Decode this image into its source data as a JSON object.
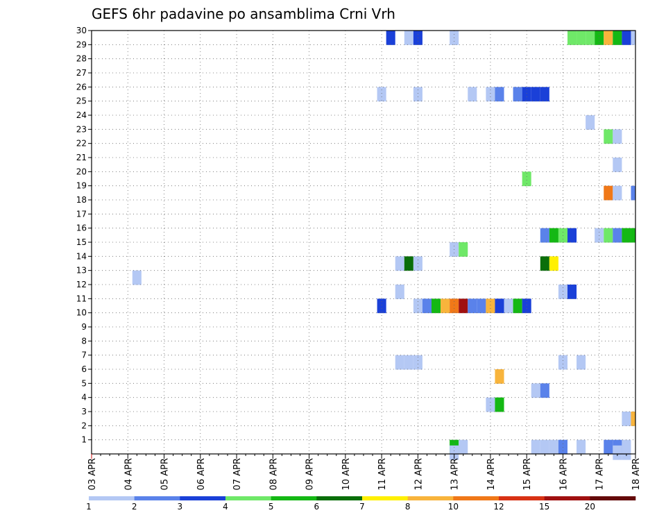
{
  "chart_data": {
    "type": "heatmap",
    "title": "GEFS 6hr padavine po ansamblima Crni Vrh",
    "xlabel": "",
    "ylabel": "",
    "x_ticks": [
      "03 APR",
      "04 APR",
      "05 APR",
      "06 APR",
      "07 APR",
      "08 APR",
      "09 APR",
      "10 APR",
      "11 APR",
      "12 APR",
      "13 APR",
      "14 APR",
      "15 APR",
      "16 APR",
      "17 APR",
      "18 APR"
    ],
    "y_ticks": [
      1,
      2,
      3,
      4,
      5,
      6,
      7,
      8,
      9,
      10,
      11,
      12,
      13,
      14,
      15,
      16,
      17,
      18,
      19,
      20,
      21,
      22,
      23,
      24,
      25,
      26,
      27,
      28,
      29,
      30
    ],
    "x_unit": "6-hour step from 03 APR 00Z",
    "xlim": [
      0,
      60
    ],
    "ylim": [
      0,
      30
    ],
    "grid": true,
    "colorbar": {
      "levels": [
        1,
        2,
        3,
        4,
        5,
        6,
        7,
        8,
        10,
        12,
        15,
        20
      ],
      "colors": [
        "#b4c8f4",
        "#5a82ea",
        "#1a40d8",
        "#6fe868",
        "#14b814",
        "#0a6e0a",
        "#fff000",
        "#f8b43c",
        "#f07818",
        "#d83214",
        "#a01010",
        "#640a0a"
      ]
    },
    "cells": [
      [
        32,
        10,
        3
      ],
      [
        36,
        10,
        1
      ],
      [
        37,
        10,
        2
      ],
      [
        38,
        10,
        5
      ],
      [
        39,
        10,
        8
      ],
      [
        40,
        10,
        10
      ],
      [
        41,
        10,
        15
      ],
      [
        42,
        10,
        2
      ],
      [
        43,
        10,
        2
      ],
      [
        44,
        10,
        8
      ],
      [
        45,
        10,
        3
      ],
      [
        46,
        10,
        1
      ],
      [
        47,
        10,
        5
      ],
      [
        48,
        10,
        3
      ],
      [
        34,
        11,
        1
      ],
      [
        52,
        11,
        1
      ],
      [
        53,
        11,
        3
      ],
      [
        5,
        12,
        1
      ],
      [
        34,
        13,
        1
      ],
      [
        35,
        13,
        6
      ],
      [
        36,
        13,
        1
      ],
      [
        50,
        13,
        6
      ],
      [
        51,
        13,
        7
      ],
      [
        40,
        14,
        1
      ],
      [
        41,
        14,
        4
      ],
      [
        50,
        15,
        2
      ],
      [
        51,
        15,
        5
      ],
      [
        52,
        15,
        4
      ],
      [
        53,
        15,
        3
      ],
      [
        56,
        15,
        1
      ],
      [
        57,
        15,
        4
      ],
      [
        58,
        15,
        2
      ],
      [
        59,
        15,
        5
      ],
      [
        60,
        15,
        5
      ],
      [
        48,
        19,
        4
      ],
      [
        57,
        18,
        10
      ],
      [
        58,
        18,
        1
      ],
      [
        60,
        18,
        2
      ],
      [
        58,
        20,
        1
      ],
      [
        57,
        22,
        4
      ],
      [
        58,
        22,
        1
      ],
      [
        55,
        23,
        1
      ],
      [
        32,
        25,
        1
      ],
      [
        36,
        25,
        1
      ],
      [
        42,
        25,
        1
      ],
      [
        44,
        25,
        1
      ],
      [
        45,
        25,
        2
      ],
      [
        47,
        25,
        2
      ],
      [
        48,
        25,
        3
      ],
      [
        49,
        25,
        3
      ],
      [
        50,
        25,
        3
      ],
      [
        33,
        29,
        3
      ],
      [
        35,
        29,
        1
      ],
      [
        36,
        29,
        3
      ],
      [
        40,
        29,
        1
      ],
      [
        53,
        29,
        4
      ],
      [
        54,
        29,
        4
      ],
      [
        55,
        29,
        4
      ],
      [
        56,
        29,
        5
      ],
      [
        57,
        29,
        8
      ],
      [
        58,
        29,
        5
      ],
      [
        59,
        29,
        3
      ],
      [
        60,
        29,
        1
      ],
      [
        34,
        6,
        1
      ],
      [
        35,
        6,
        1
      ],
      [
        36,
        6,
        1
      ],
      [
        52,
        6,
        1
      ],
      [
        54,
        6,
        1
      ],
      [
        45,
        5,
        8
      ],
      [
        49,
        4,
        1
      ],
      [
        50,
        4,
        2
      ],
      [
        44,
        3,
        1
      ],
      [
        45,
        3,
        5
      ],
      [
        59,
        2,
        1
      ],
      [
        60,
        2,
        8
      ],
      [
        40,
        0,
        5
      ],
      [
        41,
        0,
        1
      ],
      [
        49,
        0,
        1
      ],
      [
        50,
        0,
        1
      ],
      [
        51,
        0,
        1
      ],
      [
        52,
        0,
        2
      ],
      [
        54,
        0,
        1
      ],
      [
        57,
        0,
        2
      ],
      [
        58,
        0,
        2
      ],
      [
        59,
        0,
        1
      ],
      [
        40,
        -0.4,
        1
      ],
      [
        58,
        -0.4,
        1
      ],
      [
        59,
        -0.4,
        1
      ]
    ]
  }
}
